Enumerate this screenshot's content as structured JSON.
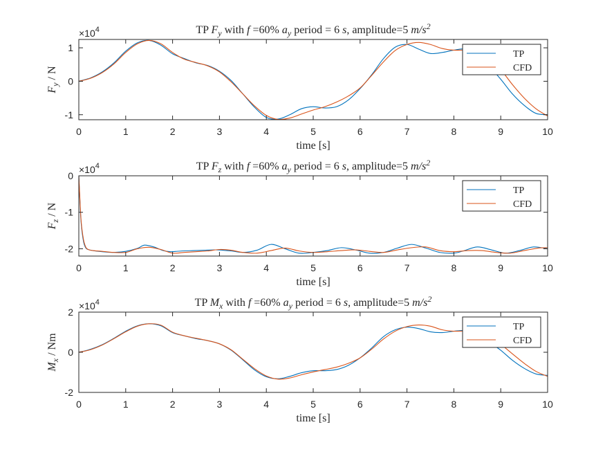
{
  "figure": {
    "background": "#ffffff",
    "axis_color": "#262626",
    "series_colors": {
      "TP": "#0072BD",
      "CFD": "#D95319"
    }
  },
  "chart_data": [
    {
      "type": "line",
      "title_parts": [
        "TP ",
        "F",
        "y",
        " with ",
        "f",
        " =60% ",
        "a",
        "y",
        " period = 6 ",
        "s",
        ", amplitude=5 ",
        "m/s",
        "2"
      ],
      "ylabel_parts": [
        "F",
        "y",
        " / N"
      ],
      "xlabel": "time [s]",
      "exponent_label": "×10",
      "exponent_power": "4",
      "xlim": [
        0,
        10
      ],
      "ylim": [
        -1.15,
        1.25
      ],
      "xticks": [
        0,
        1,
        2,
        3,
        4,
        5,
        6,
        7,
        8,
        9,
        10
      ],
      "yticks": [
        -1,
        0,
        1
      ],
      "ytick_labels": [
        "-1",
        "0",
        "1"
      ],
      "legend_position": "top-right",
      "series": [
        {
          "name": "TP",
          "x": [
            0,
            0.25,
            0.5,
            0.75,
            1,
            1.25,
            1.5,
            1.75,
            2,
            2.25,
            2.5,
            2.75,
            3,
            3.25,
            3.5,
            3.75,
            4,
            4.25,
            4.5,
            4.75,
            5,
            5.25,
            5.5,
            5.75,
            6,
            6.25,
            6.5,
            6.75,
            7,
            7.25,
            7.5,
            7.75,
            8,
            8.25,
            8.5,
            8.75,
            9,
            9.25,
            9.5,
            9.75,
            10
          ],
          "values": [
            0,
            0.1,
            0.28,
            0.55,
            0.9,
            1.15,
            1.22,
            1.08,
            0.82,
            0.68,
            0.55,
            0.47,
            0.3,
            0.02,
            -0.38,
            -0.78,
            -1.08,
            -1.13,
            -1.0,
            -0.82,
            -0.76,
            -0.8,
            -0.76,
            -0.56,
            -0.22,
            0.2,
            0.68,
            1.02,
            1.1,
            0.96,
            0.83,
            0.86,
            0.93,
            0.96,
            0.78,
            0.45,
            0.06,
            -0.38,
            -0.72,
            -0.96,
            -1.0
          ]
        },
        {
          "name": "CFD",
          "x": [
            0,
            0.25,
            0.5,
            0.75,
            1,
            1.25,
            1.5,
            1.75,
            2,
            2.25,
            2.5,
            2.75,
            3,
            3.25,
            3.5,
            3.75,
            4,
            4.25,
            4.5,
            4.75,
            5,
            5.25,
            5.5,
            5.75,
            6,
            6.25,
            6.5,
            6.75,
            7,
            7.25,
            7.5,
            7.75,
            8,
            8.25,
            8.5,
            8.75,
            9,
            9.25,
            9.5,
            9.75,
            10
          ],
          "values": [
            0,
            0.09,
            0.26,
            0.52,
            0.86,
            1.12,
            1.22,
            1.12,
            0.86,
            0.66,
            0.56,
            0.46,
            0.28,
            -0.02,
            -0.38,
            -0.74,
            -1.02,
            -1.14,
            -1.1,
            -0.98,
            -0.86,
            -0.76,
            -0.62,
            -0.44,
            -0.2,
            0.18,
            0.58,
            0.92,
            1.1,
            1.16,
            1.1,
            0.98,
            0.93,
            0.93,
            0.88,
            0.7,
            0.35,
            -0.1,
            -0.5,
            -0.82,
            -1.04
          ]
        }
      ]
    },
    {
      "type": "line",
      "title_parts": [
        "TP ",
        "F",
        "z",
        " with ",
        "f",
        " =60% ",
        "a",
        "y",
        " period = 6 ",
        "s",
        ", amplitude=5 ",
        "m/s",
        "2"
      ],
      "ylabel_parts": [
        "F",
        "z",
        " / N"
      ],
      "xlabel": "time [s]",
      "exponent_label": "×10",
      "exponent_power": "4",
      "xlim": [
        0,
        10
      ],
      "ylim": [
        -2.2,
        0
      ],
      "xticks": [
        0,
        1,
        2,
        3,
        4,
        5,
        6,
        7,
        8,
        9,
        10
      ],
      "yticks": [
        -2,
        -1,
        0
      ],
      "ytick_labels": [
        "-2",
        "-1",
        "0"
      ],
      "legend_position": "top-right",
      "series": [
        {
          "name": "TP",
          "x": [
            0,
            0.02,
            0.05,
            0.1,
            0.15,
            0.2,
            0.3,
            0.5,
            0.75,
            1,
            1.25,
            1.4,
            1.6,
            1.8,
            1.95,
            2.2,
            2.45,
            2.7,
            2.95,
            3.25,
            3.5,
            3.8,
            4.1,
            4.4,
            4.7,
            5,
            5.3,
            5.6,
            5.9,
            6.2,
            6.5,
            6.8,
            7.1,
            7.4,
            7.7,
            8.0,
            8.2,
            8.5,
            8.8,
            9.1,
            9.4,
            9.7,
            10
          ],
          "values": [
            0,
            -0.6,
            -1.3,
            -1.8,
            -1.98,
            -2.02,
            -2.05,
            -2.08,
            -2.1,
            -2.07,
            -1.99,
            -1.9,
            -1.95,
            -2.05,
            -2.08,
            -2.06,
            -2.05,
            -2.04,
            -2.03,
            -2.06,
            -2.1,
            -2.04,
            -1.88,
            -2.0,
            -2.12,
            -2.1,
            -2.05,
            -1.97,
            -2.03,
            -2.12,
            -2.1,
            -1.98,
            -1.88,
            -1.98,
            -2.1,
            -2.12,
            -2.06,
            -1.95,
            -2.03,
            -2.12,
            -2.05,
            -1.95,
            -2.0
          ]
        },
        {
          "name": "CFD",
          "x": [
            0,
            0.02,
            0.05,
            0.1,
            0.15,
            0.2,
            0.3,
            0.5,
            0.75,
            1,
            1.25,
            1.5,
            1.75,
            2,
            2.25,
            2.5,
            2.75,
            3,
            3.25,
            3.5,
            3.8,
            4.1,
            4.4,
            4.7,
            5,
            5.3,
            5.6,
            5.9,
            6.2,
            6.5,
            6.8,
            7.1,
            7.4,
            7.7,
            8.0,
            8.3,
            8.6,
            8.9,
            9.2,
            9.5,
            9.8,
            10
          ],
          "values": [
            0,
            -0.55,
            -1.25,
            -1.75,
            -1.96,
            -2.02,
            -2.05,
            -2.07,
            -2.1,
            -2.1,
            -2.0,
            -1.96,
            -2.02,
            -2.12,
            -2.1,
            -2.08,
            -2.06,
            -2.02,
            -2.04,
            -2.1,
            -2.12,
            -2.05,
            -1.98,
            -2.06,
            -2.1,
            -2.08,
            -2.05,
            -2.03,
            -2.07,
            -2.1,
            -2.03,
            -1.97,
            -1.95,
            -2.05,
            -2.08,
            -2.05,
            -2.05,
            -2.1,
            -2.12,
            -2.05,
            -1.98,
            -1.97
          ]
        }
      ]
    },
    {
      "type": "line",
      "title_parts": [
        "TP ",
        "M",
        "x",
        " with ",
        "f",
        " =60% ",
        "a",
        "y",
        " period = 6 ",
        "s",
        ", amplitude=5 ",
        "m/s",
        "2"
      ],
      "ylabel_parts": [
        "M",
        "x",
        " / Nm"
      ],
      "xlabel": "time [s]",
      "exponent_label": "×10",
      "exponent_power": "4",
      "xlim": [
        0,
        10
      ],
      "ylim": [
        -2,
        2
      ],
      "xticks": [
        0,
        1,
        2,
        3,
        4,
        5,
        6,
        7,
        8,
        9,
        10
      ],
      "yticks": [
        -2,
        0,
        2
      ],
      "ytick_labels": [
        "-2",
        "0",
        "2"
      ],
      "legend_position": "top-right",
      "series": [
        {
          "name": "TP",
          "x": [
            0,
            0.25,
            0.5,
            0.75,
            1,
            1.25,
            1.5,
            1.75,
            2,
            2.25,
            2.5,
            2.75,
            3,
            3.25,
            3.5,
            3.75,
            4,
            4.25,
            4.5,
            4.75,
            5,
            5.25,
            5.5,
            5.75,
            6,
            6.25,
            6.5,
            6.75,
            7,
            7.25,
            7.5,
            7.75,
            8,
            8.25,
            8.5,
            8.75,
            9,
            9.25,
            9.5,
            9.75,
            10
          ],
          "values": [
            0,
            0.15,
            0.38,
            0.7,
            1.05,
            1.32,
            1.42,
            1.32,
            0.98,
            0.82,
            0.68,
            0.58,
            0.42,
            0.1,
            -0.38,
            -0.88,
            -1.22,
            -1.32,
            -1.2,
            -1.02,
            -0.92,
            -0.92,
            -0.86,
            -0.65,
            -0.28,
            0.22,
            0.78,
            1.12,
            1.25,
            1.18,
            1.02,
            0.98,
            1.05,
            1.08,
            0.9,
            0.52,
            0.1,
            -0.4,
            -0.8,
            -1.08,
            -1.15
          ]
        },
        {
          "name": "CFD",
          "x": [
            0,
            0.25,
            0.5,
            0.75,
            1,
            1.25,
            1.5,
            1.75,
            2,
            2.25,
            2.5,
            2.75,
            3,
            3.25,
            3.5,
            3.75,
            4,
            4.25,
            4.5,
            4.75,
            5,
            5.25,
            5.5,
            5.75,
            6,
            6.25,
            6.5,
            6.75,
            7,
            7.25,
            7.5,
            7.75,
            8,
            8.25,
            8.5,
            8.75,
            9,
            9.25,
            9.5,
            9.75,
            10
          ],
          "values": [
            0,
            0.13,
            0.36,
            0.68,
            1.02,
            1.3,
            1.42,
            1.35,
            1.0,
            0.82,
            0.7,
            0.58,
            0.42,
            0.12,
            -0.35,
            -0.82,
            -1.18,
            -1.34,
            -1.28,
            -1.12,
            -0.98,
            -0.86,
            -0.74,
            -0.55,
            -0.28,
            0.16,
            0.66,
            1.05,
            1.28,
            1.36,
            1.3,
            1.12,
            1.05,
            1.06,
            1.02,
            0.8,
            0.4,
            -0.08,
            -0.55,
            -0.95,
            -1.2
          ]
        }
      ]
    }
  ]
}
